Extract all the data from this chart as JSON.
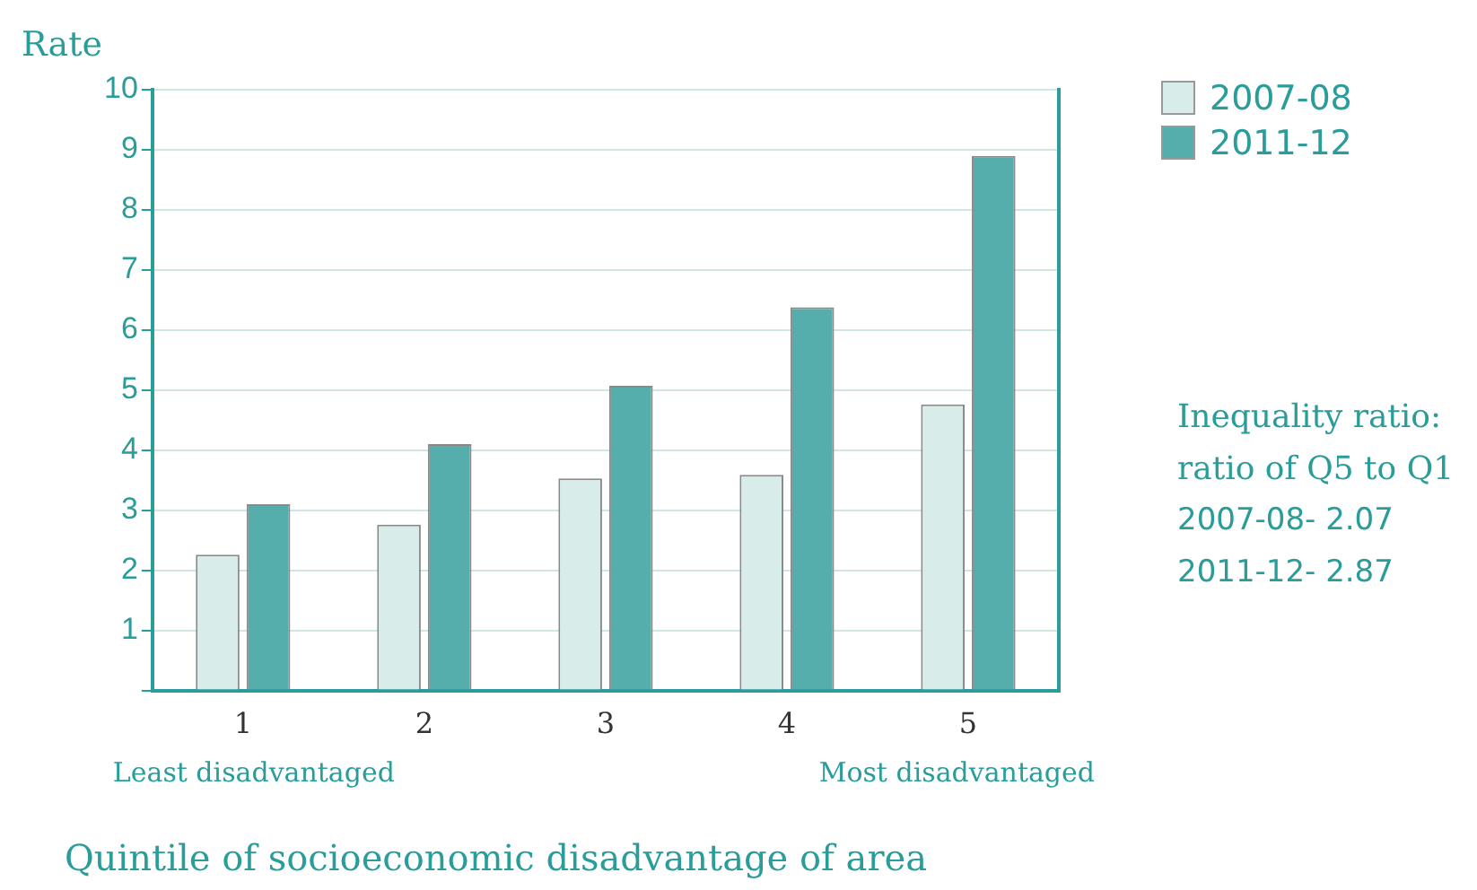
{
  "chart_data": {
    "type": "bar",
    "ylabel": "Rate",
    "xlabel": "Quintile of socioeconomic disadvantage of area",
    "categories": [
      "1",
      "2",
      "3",
      "4",
      "5"
    ],
    "series": [
      {
        "name": "2007-08",
        "color": "#d8ecea",
        "values": [
          2.26,
          2.76,
          3.53,
          3.59,
          4.76
        ]
      },
      {
        "name": "2011-12",
        "color": "#56aeac",
        "values": [
          3.1,
          4.1,
          5.07,
          6.38,
          8.9
        ]
      }
    ],
    "ylim": [
      0,
      10
    ],
    "yticks": [
      {
        "value": 0,
        "label": null
      },
      1,
      2,
      3,
      4,
      5,
      6,
      7,
      8,
      9,
      10
    ],
    "grid": "y",
    "legend": "top right",
    "annotations": [
      "Least disadvantaged",
      "Most disadvantaged",
      "Inequality ratio:",
      "ratio of Q5 to Q1",
      "2007-08- 2.07",
      "2011-12- 2.87"
    ]
  }
}
